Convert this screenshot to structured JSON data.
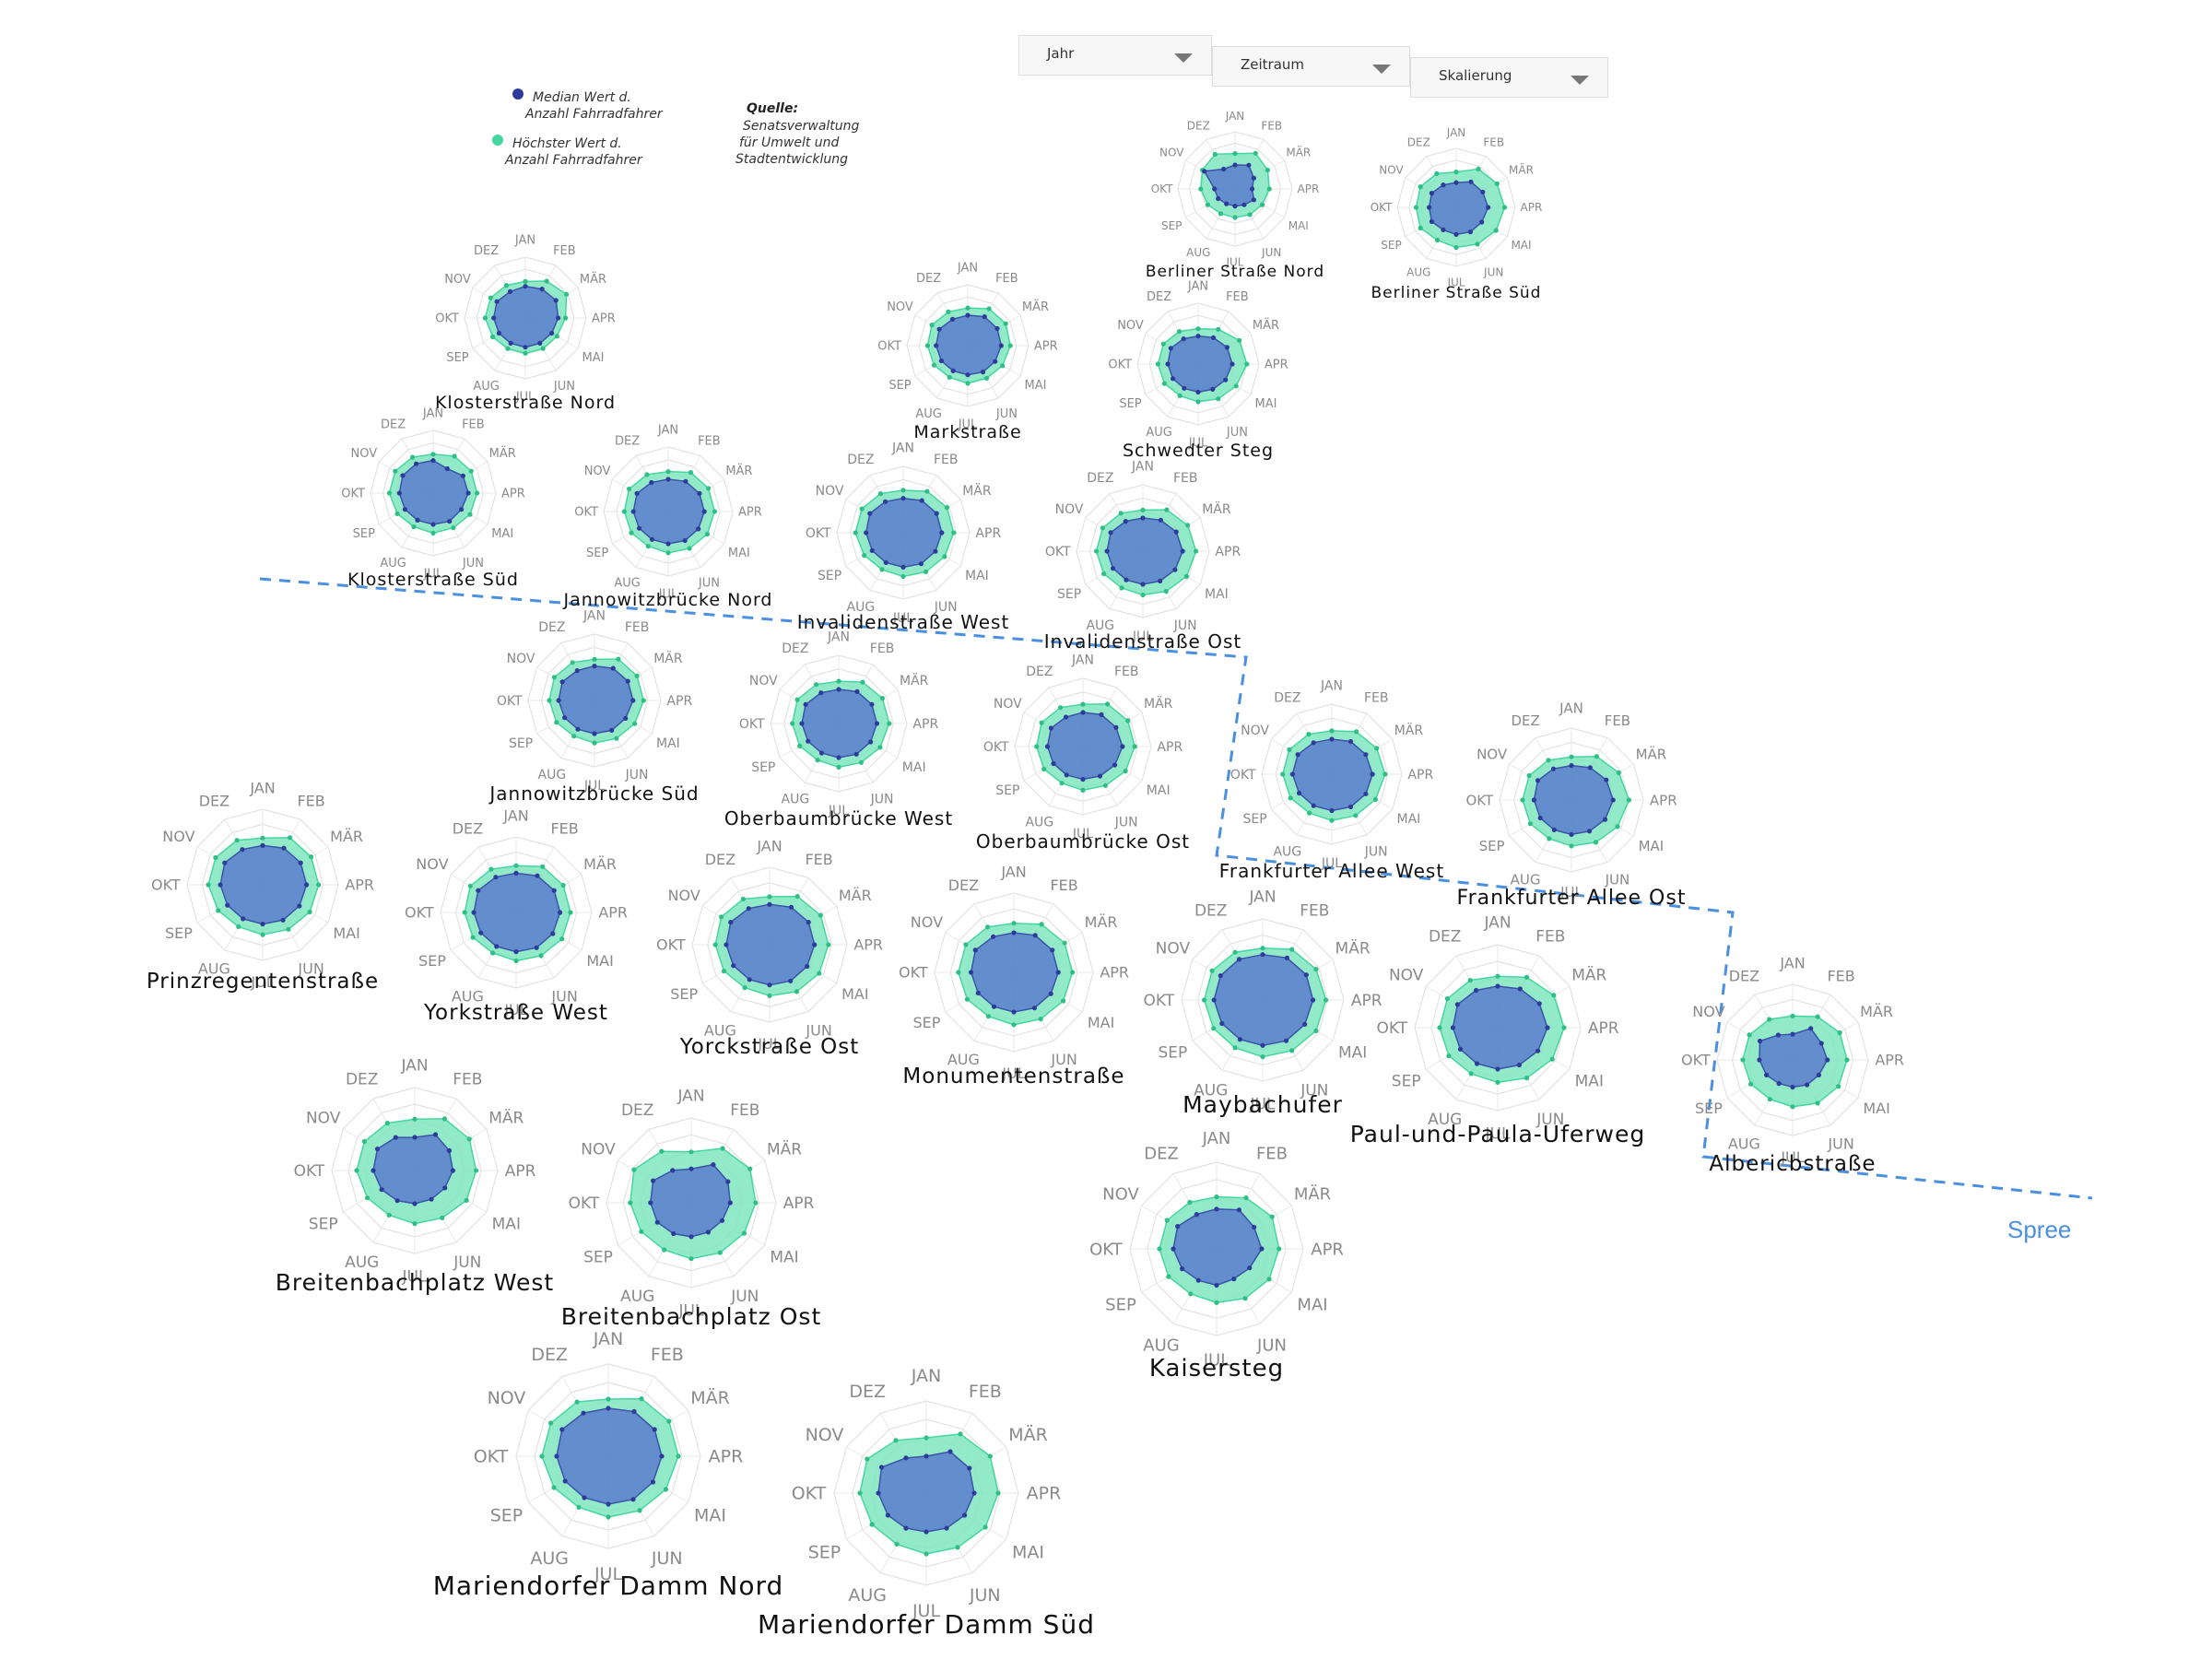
{
  "controls": {
    "dropdowns": [
      {
        "label": "Jahr"
      },
      {
        "label": "Zeitraum"
      },
      {
        "label": "Skalierung"
      }
    ]
  },
  "legend": {
    "median_label_1": "Median Wert d.",
    "median_label_2": "Anzahl Fahrradfahrer",
    "max_label_1": "Höchster Wert d.",
    "max_label_2": "Anzahl Fahrradfahrer",
    "median_color": "#2f3b9a",
    "max_color": "#45d6a0"
  },
  "source": {
    "heading": "Quelle:",
    "line1": "Senatsverwaltung",
    "line2": "für Umwelt und",
    "line3": "Stadtentwicklung"
  },
  "river_label": "Spree",
  "colors": {
    "median_fill": "#5b7ccc",
    "max_fill": "#7fe6be",
    "river": "#4a8fe0"
  },
  "chart_data": {
    "type": "radar",
    "months": [
      "JAN",
      "FEB",
      "MÄR",
      "APR",
      "MAI",
      "JUN",
      "JUL",
      "AUG",
      "SEP",
      "OKT",
      "NOV",
      "DEZ"
    ],
    "stations": [
      {
        "name": "Berliner Straße Nord",
        "max": [
          0.62,
          0.72,
          0.66,
          0.6,
          0.55,
          0.52,
          0.5,
          0.5,
          0.55,
          0.6,
          0.66,
          0.7
        ],
        "median": [
          0.42,
          0.48,
          0.38,
          0.3,
          0.38,
          0.32,
          0.3,
          0.3,
          0.34,
          0.36,
          0.62,
          0.4
        ]
      },
      {
        "name": "Berliner Straße Süd",
        "max": [
          0.6,
          0.75,
          0.8,
          0.82,
          0.78,
          0.72,
          0.68,
          0.64,
          0.7,
          0.68,
          0.7,
          0.66
        ],
        "median": [
          0.42,
          0.5,
          0.52,
          0.54,
          0.5,
          0.48,
          0.46,
          0.44,
          0.48,
          0.46,
          0.48,
          0.44
        ]
      },
      {
        "name": "Klosterstraße Nord",
        "max": [
          0.6,
          0.7,
          0.78,
          0.66,
          0.6,
          0.58,
          0.58,
          0.58,
          0.62,
          0.66,
          0.66,
          0.62
        ],
        "median": [
          0.52,
          0.55,
          0.58,
          0.54,
          0.5,
          0.48,
          0.48,
          0.48,
          0.5,
          0.52,
          0.54,
          0.5
        ]
      },
      {
        "name": "Markstraße",
        "max": [
          0.62,
          0.7,
          0.72,
          0.7,
          0.66,
          0.62,
          0.62,
          0.6,
          0.64,
          0.66,
          0.68,
          0.64
        ],
        "median": [
          0.5,
          0.55,
          0.56,
          0.55,
          0.52,
          0.5,
          0.48,
          0.48,
          0.5,
          0.52,
          0.54,
          0.5
        ]
      },
      {
        "name": "Schwedter Steg",
        "max": [
          0.58,
          0.66,
          0.78,
          0.8,
          0.72,
          0.66,
          0.62,
          0.6,
          0.64,
          0.66,
          0.66,
          0.62
        ],
        "median": [
          0.46,
          0.5,
          0.55,
          0.56,
          0.52,
          0.48,
          0.46,
          0.46,
          0.48,
          0.5,
          0.52,
          0.48
        ]
      },
      {
        "name": "Klosterstraße Süd",
        "max": [
          0.62,
          0.68,
          0.7,
          0.7,
          0.68,
          0.64,
          0.64,
          0.62,
          0.66,
          0.7,
          0.7,
          0.66
        ],
        "median": [
          0.52,
          0.45,
          0.55,
          0.56,
          0.52,
          0.52,
          0.5,
          0.5,
          0.52,
          0.54,
          0.56,
          0.54
        ]
      },
      {
        "name": "Jannowitzbrücke Nord",
        "max": [
          0.62,
          0.7,
          0.72,
          0.72,
          0.7,
          0.66,
          0.64,
          0.62,
          0.66,
          0.68,
          0.7,
          0.66
        ],
        "median": [
          0.5,
          0.54,
          0.56,
          0.56,
          0.54,
          0.52,
          0.5,
          0.5,
          0.52,
          0.54,
          0.56,
          0.52
        ]
      },
      {
        "name": "Invalidenstraße West",
        "max": [
          0.64,
          0.72,
          0.76,
          0.76,
          0.72,
          0.68,
          0.66,
          0.64,
          0.68,
          0.72,
          0.72,
          0.68
        ],
        "median": [
          0.52,
          0.56,
          0.58,
          0.58,
          0.56,
          0.54,
          0.52,
          0.52,
          0.54,
          0.56,
          0.58,
          0.54
        ]
      },
      {
        "name": "Invalidenstraße Ost",
        "max": [
          0.62,
          0.72,
          0.78,
          0.8,
          0.76,
          0.7,
          0.66,
          0.64,
          0.68,
          0.7,
          0.7,
          0.66
        ],
        "median": [
          0.5,
          0.54,
          0.58,
          0.6,
          0.56,
          0.52,
          0.5,
          0.5,
          0.52,
          0.54,
          0.56,
          0.52
        ]
      },
      {
        "name": "Jannowitzbrücke Süd",
        "max": [
          0.62,
          0.72,
          0.74,
          0.74,
          0.7,
          0.66,
          0.64,
          0.62,
          0.66,
          0.68,
          0.7,
          0.66
        ],
        "median": [
          0.52,
          0.56,
          0.58,
          0.58,
          0.54,
          0.52,
          0.5,
          0.5,
          0.52,
          0.54,
          0.56,
          0.52
        ]
      },
      {
        "name": "Oberbaumbrücke West",
        "max": [
          0.62,
          0.7,
          0.74,
          0.74,
          0.7,
          0.66,
          0.64,
          0.62,
          0.66,
          0.68,
          0.7,
          0.66
        ],
        "median": [
          0.5,
          0.54,
          0.56,
          0.56,
          0.54,
          0.52,
          0.5,
          0.5,
          0.52,
          0.54,
          0.56,
          0.52
        ]
      },
      {
        "name": "Oberbaumbrücke Ost",
        "max": [
          0.62,
          0.72,
          0.76,
          0.76,
          0.72,
          0.66,
          0.64,
          0.62,
          0.66,
          0.68,
          0.7,
          0.66
        ],
        "median": [
          0.5,
          0.54,
          0.56,
          0.58,
          0.54,
          0.5,
          0.48,
          0.48,
          0.5,
          0.52,
          0.54,
          0.5
        ]
      },
      {
        "name": "Frankfurter Allee West",
        "max": [
          0.62,
          0.7,
          0.74,
          0.76,
          0.72,
          0.68,
          0.66,
          0.64,
          0.68,
          0.7,
          0.7,
          0.66
        ],
        "median": [
          0.5,
          0.54,
          0.56,
          0.58,
          0.56,
          0.54,
          0.52,
          0.52,
          0.54,
          0.56,
          0.56,
          0.52
        ]
      },
      {
        "name": "Frankfurter Allee Ost",
        "max": [
          0.6,
          0.7,
          0.76,
          0.8,
          0.74,
          0.68,
          0.64,
          0.62,
          0.66,
          0.68,
          0.68,
          0.64
        ],
        "median": [
          0.48,
          0.52,
          0.56,
          0.58,
          0.54,
          0.5,
          0.48,
          0.48,
          0.5,
          0.52,
          0.54,
          0.5
        ]
      },
      {
        "name": "Prinzregentenstraße",
        "max": [
          0.62,
          0.72,
          0.74,
          0.74,
          0.72,
          0.68,
          0.66,
          0.64,
          0.68,
          0.72,
          0.72,
          0.68
        ],
        "median": [
          0.52,
          0.56,
          0.58,
          0.58,
          0.56,
          0.54,
          0.52,
          0.52,
          0.54,
          0.56,
          0.58,
          0.54
        ]
      },
      {
        "name": "Yorkstraße West",
        "max": [
          0.62,
          0.7,
          0.72,
          0.72,
          0.7,
          0.66,
          0.64,
          0.62,
          0.66,
          0.68,
          0.7,
          0.66
        ],
        "median": [
          0.52,
          0.56,
          0.58,
          0.58,
          0.56,
          0.54,
          0.52,
          0.52,
          0.54,
          0.56,
          0.58,
          0.54
        ]
      },
      {
        "name": "Yorckstraße Ost",
        "max": [
          0.62,
          0.72,
          0.76,
          0.76,
          0.74,
          0.7,
          0.66,
          0.64,
          0.68,
          0.7,
          0.72,
          0.68
        ],
        "median": [
          0.52,
          0.56,
          0.58,
          0.58,
          0.56,
          0.54,
          0.52,
          0.52,
          0.54,
          0.56,
          0.58,
          0.54
        ]
      },
      {
        "name": "Monumentenstraße",
        "max": [
          0.62,
          0.7,
          0.74,
          0.74,
          0.72,
          0.68,
          0.66,
          0.64,
          0.68,
          0.7,
          0.7,
          0.66
        ],
        "median": [
          0.5,
          0.54,
          0.56,
          0.56,
          0.54,
          0.52,
          0.5,
          0.5,
          0.52,
          0.54,
          0.56,
          0.52
        ]
      },
      {
        "name": "Maybachufer",
        "max": [
          0.64,
          0.72,
          0.76,
          0.78,
          0.76,
          0.72,
          0.7,
          0.68,
          0.7,
          0.72,
          0.72,
          0.68
        ],
        "median": [
          0.56,
          0.6,
          0.62,
          0.62,
          0.6,
          0.58,
          0.56,
          0.56,
          0.58,
          0.6,
          0.6,
          0.58
        ]
      },
      {
        "name": "Paul-und-Paula-Uferweg",
        "max": [
          0.62,
          0.7,
          0.78,
          0.8,
          0.76,
          0.7,
          0.66,
          0.64,
          0.68,
          0.7,
          0.7,
          0.66
        ],
        "median": [
          0.5,
          0.54,
          0.58,
          0.6,
          0.56,
          0.52,
          0.5,
          0.5,
          0.52,
          0.54,
          0.56,
          0.52
        ]
      },
      {
        "name": "Albericbstraße",
        "max": [
          0.58,
          0.66,
          0.72,
          0.72,
          0.7,
          0.66,
          0.62,
          0.6,
          0.64,
          0.66,
          0.66,
          0.62
        ],
        "median": [
          0.34,
          0.48,
          0.44,
          0.46,
          0.4,
          0.38,
          0.36,
          0.36,
          0.4,
          0.44,
          0.5,
          0.38
        ]
      },
      {
        "name": "Breitenbachplatz West",
        "max": [
          0.62,
          0.72,
          0.76,
          0.74,
          0.72,
          0.66,
          0.64,
          0.62,
          0.66,
          0.7,
          0.7,
          0.66
        ],
        "median": [
          0.4,
          0.5,
          0.48,
          0.46,
          0.42,
          0.4,
          0.4,
          0.42,
          0.46,
          0.5,
          0.52,
          0.46
        ]
      },
      {
        "name": "Breitenbachplatz Ost",
        "max": [
          0.6,
          0.74,
          0.8,
          0.76,
          0.72,
          0.68,
          0.66,
          0.64,
          0.68,
          0.72,
          0.78,
          0.7
        ],
        "median": [
          0.4,
          0.52,
          0.5,
          0.46,
          0.42,
          0.4,
          0.4,
          0.42,
          0.46,
          0.48,
          0.52,
          0.44
        ]
      },
      {
        "name": "Kaisersteg",
        "max": [
          0.6,
          0.68,
          0.74,
          0.72,
          0.7,
          0.66,
          0.62,
          0.6,
          0.64,
          0.66,
          0.66,
          0.62
        ],
        "median": [
          0.46,
          0.52,
          0.5,
          0.52,
          0.44,
          0.4,
          0.42,
          0.42,
          0.46,
          0.5,
          0.52,
          0.46
        ]
      },
      {
        "name": "Mariendorfer Damm Nord",
        "max": [
          0.62,
          0.72,
          0.76,
          0.76,
          0.72,
          0.68,
          0.66,
          0.64,
          0.68,
          0.72,
          0.72,
          0.68
        ],
        "median": [
          0.52,
          0.56,
          0.58,
          0.58,
          0.56,
          0.54,
          0.52,
          0.52,
          0.54,
          0.56,
          0.58,
          0.54
        ]
      },
      {
        "name": "Mariendorfer Damm Süd",
        "max": [
          0.6,
          0.74,
          0.8,
          0.78,
          0.74,
          0.68,
          0.66,
          0.64,
          0.68,
          0.72,
          0.74,
          0.66
        ],
        "median": [
          0.4,
          0.52,
          0.54,
          0.52,
          0.48,
          0.44,
          0.42,
          0.44,
          0.48,
          0.52,
          0.56,
          0.44
        ]
      }
    ]
  }
}
